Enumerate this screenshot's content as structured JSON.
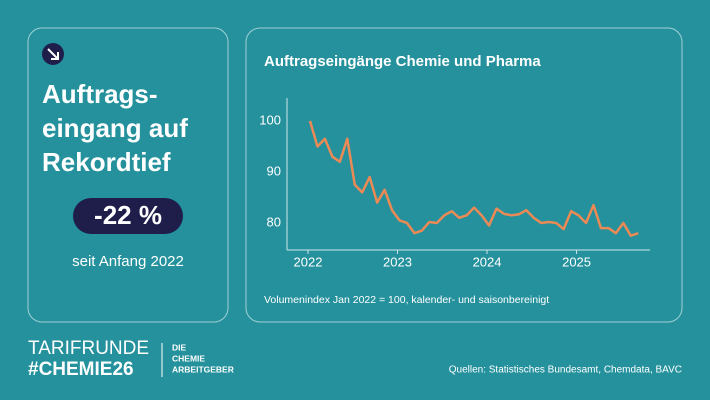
{
  "panel": {
    "headline": [
      "Auftrags-",
      "eingang auf",
      "Rekordtief"
    ],
    "badge": "-22 %",
    "caption": "seit Anfang 2022"
  },
  "chart_data": {
    "type": "line",
    "title": "Auftragseingänge Chemie und Pharma",
    "note": "Volumenindex Jan 2022 = 100, kalender- und saisonbereinigt",
    "categories": [
      "2022",
      null,
      null,
      null,
      null,
      null,
      null,
      null,
      null,
      null,
      null,
      null,
      "2023",
      null,
      null,
      null,
      null,
      null,
      null,
      null,
      null,
      null,
      null,
      null,
      "2024",
      null,
      null,
      null,
      null,
      null,
      null,
      null,
      null,
      null,
      null,
      null,
      "2025",
      null,
      null,
      null,
      null,
      null,
      null,
      null,
      null
    ],
    "values": [
      100,
      95,
      96.5,
      93,
      92,
      96.5,
      87.5,
      86,
      89,
      84,
      86.5,
      82.5,
      80.5,
      80,
      78,
      78.5,
      80.2,
      80,
      81.5,
      82.3,
      81,
      81.5,
      83,
      81.5,
      79.5,
      82.8,
      81.8,
      81.5,
      81.7,
      82.5,
      81,
      80,
      80.2,
      80,
      78.8,
      82.3,
      81.5,
      80,
      83.5,
      79,
      79,
      78,
      80,
      77.5,
      78
    ],
    "color": "#ec8a55",
    "ylim": [
      74.7,
      104.5
    ],
    "yticks": [
      80,
      90,
      100
    ]
  },
  "footer": {
    "campaign": "TARIFRUNDE",
    "hashtag": "#CHEMIE26",
    "logo": [
      "DIE",
      "CHEMIE",
      "ARBEITGEBER"
    ],
    "sources": "Quellen: Statistisches Bundesamt, Chemdata, BAVC"
  }
}
